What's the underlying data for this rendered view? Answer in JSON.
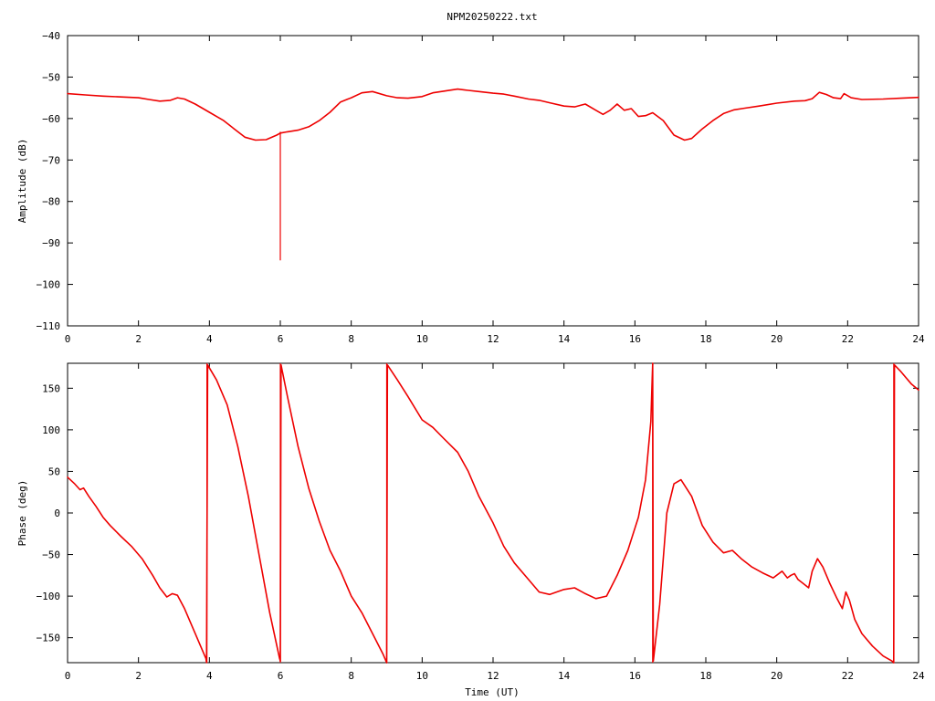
{
  "title": "NPM20250222.txt",
  "trace_color": "#ee0000",
  "chart_data": [
    {
      "type": "line",
      "title": "NPM20250222.txt",
      "xlabel": "",
      "ylabel": "Amplitude (dB)",
      "xlim": [
        0,
        24
      ],
      "ylim": [
        -110,
        -40
      ],
      "xticks": [
        0,
        2,
        4,
        6,
        8,
        10,
        12,
        14,
        16,
        18,
        20,
        22,
        24
      ],
      "yticks": [
        -110,
        -100,
        -90,
        -80,
        -70,
        -60,
        -50,
        -40
      ],
      "grid": false,
      "series": [
        {
          "x": [
            0,
            0.5,
            1,
            1.5,
            2,
            2.3,
            2.6,
            2.9,
            3.1,
            3.3,
            3.6,
            4,
            4.4,
            4.7,
            5,
            5.3,
            5.6,
            5.9,
            6,
            6.2,
            6.5,
            6.8,
            7.1,
            7.4,
            7.7,
            8,
            8.3,
            8.6,
            9,
            9.3,
            9.6,
            10,
            10.3,
            10.6,
            11,
            11.3,
            11.6,
            12,
            12.3,
            12.6,
            13,
            13.3,
            13.6,
            14,
            14.3,
            14.6,
            14.9,
            15.1,
            15.3,
            15.5,
            15.7,
            15.9,
            16.1,
            16.3,
            16.5,
            16.8,
            17.1,
            17.4,
            17.6,
            17.9,
            18.2,
            18.5,
            18.8,
            19.1,
            19.5,
            20,
            20.5,
            20.8,
            21,
            21.2,
            21.4,
            21.6,
            21.8,
            21.9,
            22.1,
            22.4,
            23,
            23.5,
            24
          ],
          "y": [
            -54,
            -54.3,
            -54.6,
            -54.8,
            -55,
            -55.4,
            -55.8,
            -55.6,
            -55,
            -55.3,
            -56.5,
            -58.5,
            -60.5,
            -62.5,
            -64.5,
            -65.2,
            -65.1,
            -64,
            -63.5,
            -63.2,
            -62.8,
            -62,
            -60.5,
            -58.5,
            -56,
            -55,
            -53.8,
            -53.5,
            -54.5,
            -55,
            -55.1,
            -54.7,
            -53.8,
            -53.4,
            -52.9,
            -53.2,
            -53.5,
            -53.9,
            -54.1,
            -54.6,
            -55.3,
            -55.6,
            -56.2,
            -57,
            -57.2,
            -56.5,
            -58,
            -59,
            -58,
            -56.5,
            -58,
            -57.6,
            -59.5,
            -59.3,
            -58.6,
            -60.5,
            -64,
            -65.2,
            -64.8,
            -62.5,
            -60.5,
            -58.8,
            -57.9,
            -57.5,
            -57,
            -56.3,
            -55.8,
            -55.7,
            -55.2,
            -53.7,
            -54.2,
            -55,
            -55.2,
            -54,
            -55,
            -55.4,
            -55.3,
            -55.1,
            -54.9
          ]
        }
      ],
      "annotations": [
        {
          "x": 6.0,
          "y_from": -63.2,
          "y_to": -94.2
        }
      ]
    },
    {
      "type": "line",
      "title": "",
      "xlabel": "Time (UT)",
      "ylabel": "Phase (deg)",
      "xlim": [
        0,
        24
      ],
      "ylim": [
        -180,
        180
      ],
      "xticks": [
        0,
        2,
        4,
        6,
        8,
        10,
        12,
        14,
        16,
        18,
        20,
        22,
        24
      ],
      "yticks": [
        -150,
        -100,
        -50,
        0,
        50,
        100,
        150
      ],
      "grid": false,
      "series": [
        {
          "x": [
            0,
            0.2,
            0.35,
            0.45,
            0.6,
            0.8,
            1,
            1.2,
            1.5,
            1.8,
            2.1,
            2.4,
            2.6,
            2.8,
            2.95,
            3.1,
            3.3,
            3.6,
            3.9,
            3.92,
            3.95,
            4.2,
            4.5,
            4.8,
            5.1,
            5.4,
            5.7,
            5.98,
            6.0
          ],
          "y": [
            43,
            35,
            28,
            30,
            20,
            8,
            -5,
            -15,
            -28,
            -40,
            -55,
            -75,
            -90,
            -101,
            -97,
            -99,
            -115,
            -145,
            -175,
            -180,
            178,
            160,
            130,
            80,
            20,
            -50,
            -120,
            -175,
            -178
          ]
        },
        {
          "x": [
            6.0,
            6.02,
            6.2,
            6.5,
            6.8,
            7.1,
            7.4,
            7.7,
            8.0,
            8.3,
            8.6,
            8.9,
            8.98,
            9.0
          ],
          "y": [
            -178,
            178,
            140,
            80,
            30,
            -10,
            -45,
            -70,
            -100,
            -120,
            -145,
            -170,
            -178,
            -180
          ]
        },
        {
          "x": [
            9.0,
            9.02,
            9.3,
            9.6,
            10,
            10.3,
            10.6,
            11,
            11.3,
            11.6,
            12,
            12.3,
            12.6,
            13,
            13.3,
            13.6,
            14,
            14.3,
            14.6,
            14.9,
            15.2,
            15.5,
            15.8,
            16.1,
            16.3,
            16.45,
            16.5
          ],
          "y": [
            -180,
            178,
            160,
            140,
            112,
            103,
            90,
            73,
            50,
            20,
            -12,
            -40,
            -60,
            -80,
            -95,
            -98,
            -92,
            -90,
            -97,
            -103,
            -100,
            -75,
            -45,
            -5,
            40,
            110,
            180
          ]
        },
        {
          "x": [
            16.5,
            16.52,
            16.7,
            16.9,
            17.1,
            17.3,
            17.6,
            17.9,
            18.2,
            18.5,
            18.75,
            19,
            19.3,
            19.6,
            19.9,
            20.15,
            20.3,
            20.4,
            20.5,
            20.6,
            20.75,
            20.9,
            21,
            21.15,
            21.3,
            21.5,
            21.7,
            21.85,
            21.95,
            22.05,
            22.2,
            22.4,
            22.7,
            23,
            23.25,
            23.3
          ],
          "y": [
            180,
            -178,
            -110,
            0,
            35,
            40,
            20,
            -15,
            -35,
            -48,
            -45,
            -55,
            -65,
            -72,
            -78,
            -70,
            -78,
            -75,
            -73,
            -80,
            -85,
            -90,
            -70,
            -55,
            -65,
            -85,
            -103,
            -115,
            -95,
            -105,
            -128,
            -145,
            -160,
            -172,
            -178,
            -180
          ]
        },
        {
          "x": [
            23.3,
            23.32,
            23.5,
            23.8,
            24
          ],
          "y": [
            -180,
            178,
            170,
            155,
            148
          ]
        }
      ],
      "wraps": [
        {
          "x": 3.93,
          "y_from": -180,
          "y_to": 180
        },
        {
          "x": 6.0,
          "y_from": -180,
          "y_to": 180
        },
        {
          "x": 9.0,
          "y_from": -180,
          "y_to": 180
        },
        {
          "x": 16.5,
          "y_from": -180,
          "y_to": 180
        },
        {
          "x": 23.3,
          "y_from": -180,
          "y_to": 180
        }
      ]
    }
  ]
}
